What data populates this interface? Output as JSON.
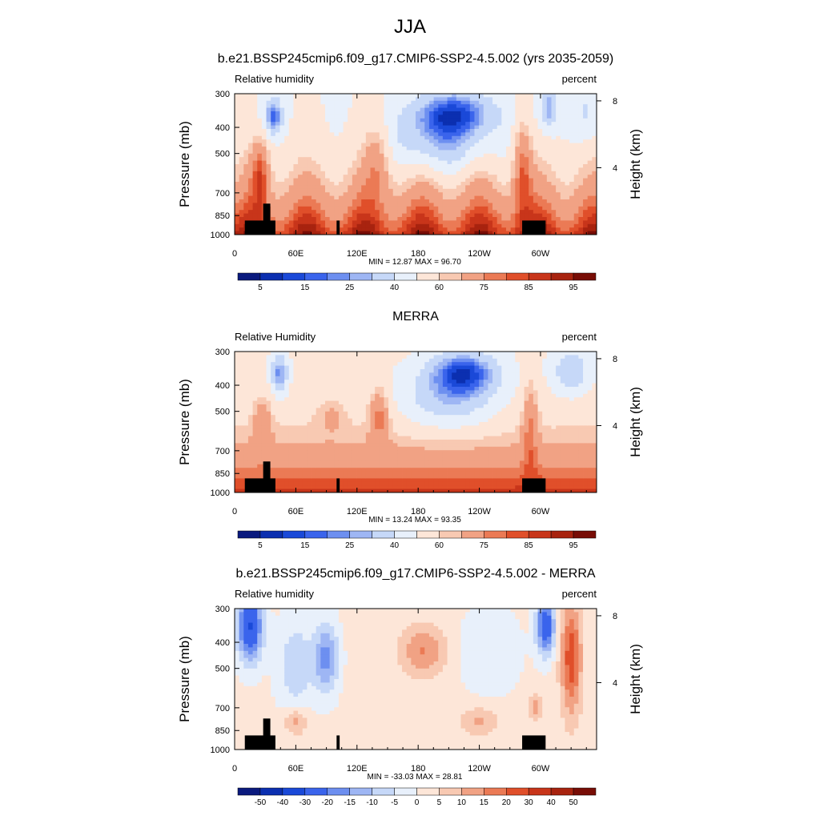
{
  "figure": {
    "title": "JJA"
  },
  "chart_data": [
    {
      "type": "heatmap",
      "title": "b.e21.BSSP245cmip6.f09_g17.CMIP6-SSP2-4.5.002 (yrs 2035-2059)",
      "left_label": "Relative humidity",
      "right_label": "percent",
      "ylabel": "Pressure (mb)",
      "ylabel_right": "Height (km)",
      "x_ticks": [
        {
          "lon": 0,
          "label": "0"
        },
        {
          "lon": 60,
          "label": "60E"
        },
        {
          "lon": 120,
          "label": "120E"
        },
        {
          "lon": 180,
          "label": "180"
        },
        {
          "lon": 240,
          "label": "120W"
        },
        {
          "lon": 300,
          "label": "60W"
        }
      ],
      "xlim": [
        0,
        355
      ],
      "y_ticks": [
        300,
        400,
        500,
        700,
        850,
        1000
      ],
      "ylim": [
        1000,
        300
      ],
      "y_scale": "log",
      "height_ticks": [
        4,
        8
      ],
      "stats_text": "MIN =  12.87  MAX =  96.70",
      "colorbar": {
        "labels": [
          "5",
          "15",
          "25",
          "40",
          "60",
          "75",
          "85",
          "95"
        ],
        "colors": [
          "#0a1a7e",
          "#0b2fb0",
          "#1a49d8",
          "#3a64ec",
          "#6d8ff0",
          "#9eb6f4",
          "#c6d8f8",
          "#e8f0fb",
          "#fde6d8",
          "#f8c9b2",
          "#f1a284",
          "#eb7a55",
          "#e04f2a",
          "#c8351a",
          "#a8230f",
          "#780d06"
        ],
        "label_slots": [
          1,
          3,
          5,
          7,
          9,
          11,
          13,
          15
        ]
      },
      "field": "model"
    },
    {
      "type": "heatmap",
      "title": "MERRA",
      "left_label": "Relative Humidity",
      "right_label": "percent",
      "ylabel": "Pressure (mb)",
      "ylabel_right": "Height (km)",
      "x_ticks": [
        {
          "lon": 0,
          "label": "0"
        },
        {
          "lon": 60,
          "label": "60E"
        },
        {
          "lon": 120,
          "label": "120E"
        },
        {
          "lon": 180,
          "label": "180"
        },
        {
          "lon": 240,
          "label": "120W"
        },
        {
          "lon": 300,
          "label": "60W"
        }
      ],
      "xlim": [
        0,
        355
      ],
      "y_ticks": [
        300,
        400,
        500,
        700,
        850,
        1000
      ],
      "ylim": [
        1000,
        300
      ],
      "y_scale": "log",
      "height_ticks": [
        4,
        8
      ],
      "stats_text": "MIN =  13.24  MAX =  93.35",
      "colorbar": {
        "labels": [
          "5",
          "15",
          "25",
          "40",
          "60",
          "75",
          "85",
          "95"
        ],
        "colors": [
          "#0a1a7e",
          "#0b2fb0",
          "#1a49d8",
          "#3a64ec",
          "#6d8ff0",
          "#9eb6f4",
          "#c6d8f8",
          "#e8f0fb",
          "#fde6d8",
          "#f8c9b2",
          "#f1a284",
          "#eb7a55",
          "#e04f2a",
          "#c8351a",
          "#a8230f",
          "#780d06"
        ],
        "label_slots": [
          1,
          3,
          5,
          7,
          9,
          11,
          13,
          15
        ]
      },
      "field": "obs"
    },
    {
      "type": "heatmap",
      "title": "b.e21.BSSP245cmip6.f09_g17.CMIP6-SSP2-4.5.002 - MERRA",
      "left_label": "Relative humidity",
      "right_label": "percent",
      "ylabel": "Pressure (mb)",
      "ylabel_right": "Height (km)",
      "x_ticks": [
        {
          "lon": 0,
          "label": "0"
        },
        {
          "lon": 60,
          "label": "60E"
        },
        {
          "lon": 120,
          "label": "120E"
        },
        {
          "lon": 180,
          "label": "180"
        },
        {
          "lon": 240,
          "label": "120W"
        },
        {
          "lon": 300,
          "label": "60W"
        }
      ],
      "xlim": [
        0,
        355
      ],
      "y_ticks": [
        300,
        400,
        500,
        700,
        850,
        1000
      ],
      "ylim": [
        1000,
        300
      ],
      "y_scale": "log",
      "height_ticks": [
        4,
        8
      ],
      "stats_text": "MIN = -33.03  MAX =  28.81",
      "colorbar": {
        "labels": [
          "-50",
          "-40",
          "-30",
          "-20",
          "-15",
          "-10",
          "-5",
          "0",
          "5",
          "10",
          "15",
          "20",
          "30",
          "40",
          "50"
        ],
        "colors": [
          "#0a1a7e",
          "#0b2fb0",
          "#1a49d8",
          "#3a64ec",
          "#6d8ff0",
          "#9eb6f4",
          "#c6d8f8",
          "#e8f0fb",
          "#fde6d8",
          "#f8c9b2",
          "#f1a284",
          "#eb7a55",
          "#e04f2a",
          "#c8351a",
          "#a8230f",
          "#780d06"
        ],
        "label_slots": [
          1,
          2,
          3,
          4,
          5,
          6,
          7,
          8,
          9,
          10,
          11,
          12,
          13,
          14,
          15
        ]
      },
      "field": "diff"
    }
  ]
}
